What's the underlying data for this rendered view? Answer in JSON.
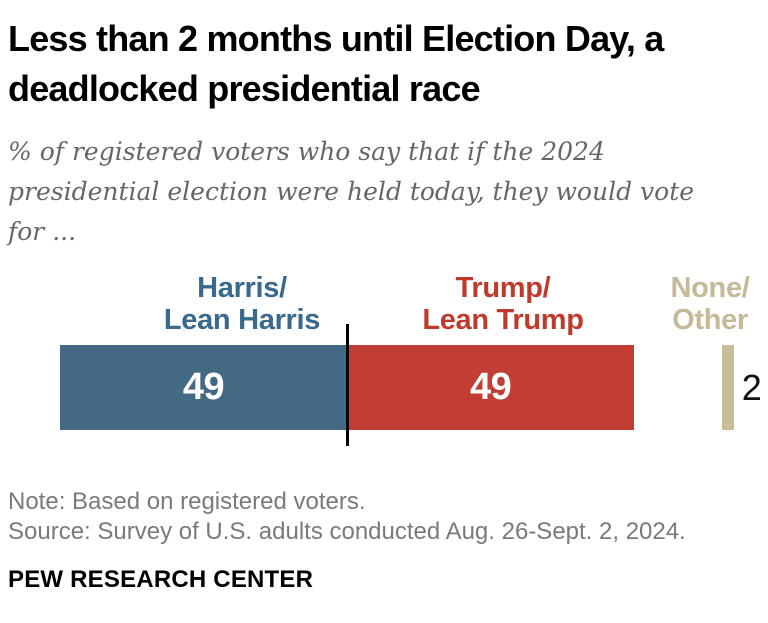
{
  "header": {
    "title": "Less than 2 months until Election Day, a\ndeadlocked presidential race",
    "subtitle": "% of registered voters who say that if the 2024\npresidential election were held today, they would vote\nfor ..."
  },
  "chart_data": {
    "type": "bar",
    "orientation": "horizontal-stacked",
    "title": "Less than 2 months until Election Day, a deadlocked presidential race",
    "subtitle": "% of registered voters who say that if the 2024 presidential election were held today, they would vote for ...",
    "categories": [
      "Harris/Lean Harris",
      "Trump/Lean Trump",
      "None/Other"
    ],
    "values": [
      49,
      49,
      2
    ],
    "series": [
      {
        "label": "Harris/\nLean Harris",
        "value": 49,
        "bar_color": "#436983",
        "label_color": "#39698c",
        "value_color": "#ffffff",
        "detached": false
      },
      {
        "label": "Trump/\nLean Trump",
        "value": 49,
        "bar_color": "#c23d33",
        "label_color": "#bf3a2b",
        "value_color": "#ffffff",
        "detached": false
      },
      {
        "label": "None/\nOther",
        "value": 2,
        "bar_color": "#c9bd98",
        "label_color": "#c4ba97",
        "value_color": "#111111",
        "detached": true
      }
    ],
    "xlim": [
      0,
      100
    ],
    "midpoint_line_at": 49,
    "grid": false,
    "legend_position": "above-bars",
    "unit": "percent"
  },
  "footer": {
    "note": "Note: Based on registered voters.",
    "source": "Source: Survey of U.S. adults conducted Aug. 26-Sept. 2, 2024.",
    "brand": "PEW RESEARCH CENTER"
  }
}
